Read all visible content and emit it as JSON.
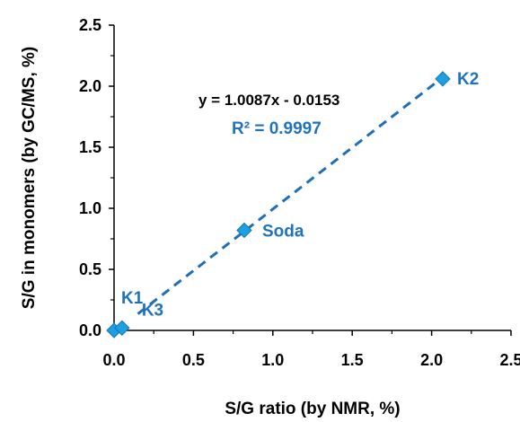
{
  "chart_data": {
    "type": "scatter",
    "xlabel": "S/G ratio (by NMR, %)",
    "ylabel": "S/G in monomers (by GC/MS, %)",
    "xlim": [
      0,
      2.5
    ],
    "ylim": [
      0,
      2.5
    ],
    "x_ticks": [
      "0.0",
      "0.5",
      "1.0",
      "1.5",
      "2.0",
      "2.5"
    ],
    "y_ticks": [
      "0.0",
      "0.5",
      "1.0",
      "1.5",
      "2.0",
      "2.5"
    ],
    "grid": false,
    "series": [
      {
        "points": [
          {
            "label": "K1",
            "x": 0.0,
            "y": 0.0
          },
          {
            "label": "K3",
            "x": 0.05,
            "y": 0.02
          },
          {
            "label": "Soda",
            "x": 0.82,
            "y": 0.82
          },
          {
            "label": "K2",
            "x": 2.07,
            "y": 2.06
          }
        ]
      }
    ],
    "trendline": {
      "slope": 1.0087,
      "intercept": -0.0153,
      "x_range": [
        0.15,
        2.07
      ],
      "style": "dashed"
    },
    "annotations": {
      "equation": "y = 1.0087x - 0.0153",
      "r_squared": "R² = 0.9997"
    },
    "colors": {
      "marker": "#1ba1e2",
      "marker_edge": "#1773b8",
      "trendline": "#1c6fb8",
      "point_label": "#1f73be",
      "r_squared": "#1f73be",
      "equation": "#000000",
      "axis": "#000000"
    }
  }
}
